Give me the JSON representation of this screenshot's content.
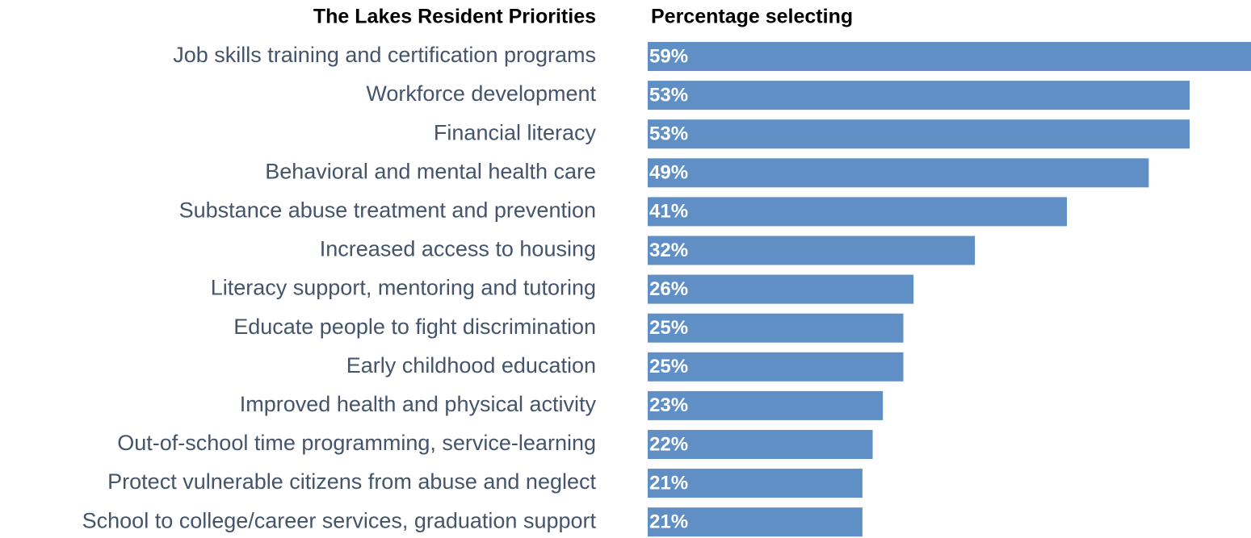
{
  "chart_data": {
    "type": "bar",
    "orientation": "horizontal",
    "categories_title": "The Lakes Resident Priorities",
    "values_title": "Percentage selecting",
    "categories": [
      "Job skills training and certification programs",
      "Workforce development",
      "Financial literacy",
      "Behavioral and mental health care",
      "Substance abuse treatment and prevention",
      "Increased access to housing",
      "Literacy support, mentoring and tutoring",
      "Educate people to fight discrimination",
      "Early childhood education",
      "Improved health and physical activity",
      "Out-of-school time programming, service-learning",
      "Protect vulnerable citizens  from abuse and neglect",
      "School to college/career services, graduation support"
    ],
    "values": [
      59,
      53,
      53,
      49,
      41,
      32,
      26,
      25,
      25,
      23,
      22,
      21,
      21
    ],
    "value_labels": [
      "59%",
      "53%",
      "53%",
      "49%",
      "41%",
      "32%",
      "26%",
      "25%",
      "25%",
      "23%",
      "22%",
      "21%",
      "21%"
    ],
    "color": "#5f8fc5"
  }
}
